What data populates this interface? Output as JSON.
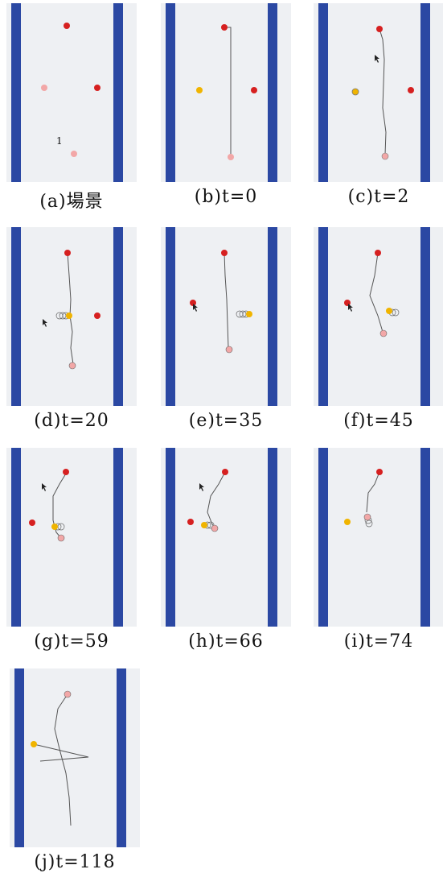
{
  "panels": [
    {
      "caption": "(a)場景",
      "marker": "1"
    },
    {
      "caption": "(b)t=0"
    },
    {
      "caption": "(c)t=2"
    },
    {
      "caption": "(d)t=20"
    },
    {
      "caption": "(e)t=35"
    },
    {
      "caption": "(f)t=45"
    },
    {
      "caption": "(g)t=59"
    },
    {
      "caption": "(h)t=66"
    },
    {
      "caption": "(i)t=74"
    },
    {
      "caption": "(j)t=118"
    }
  ],
  "colors": {
    "background": "#eef0f3",
    "wall": "#2b48a3",
    "robot_red": "#d62020",
    "robot_pink": "#f2a7a7",
    "robot_yellow": "#f0b400",
    "path": "#555555"
  }
}
